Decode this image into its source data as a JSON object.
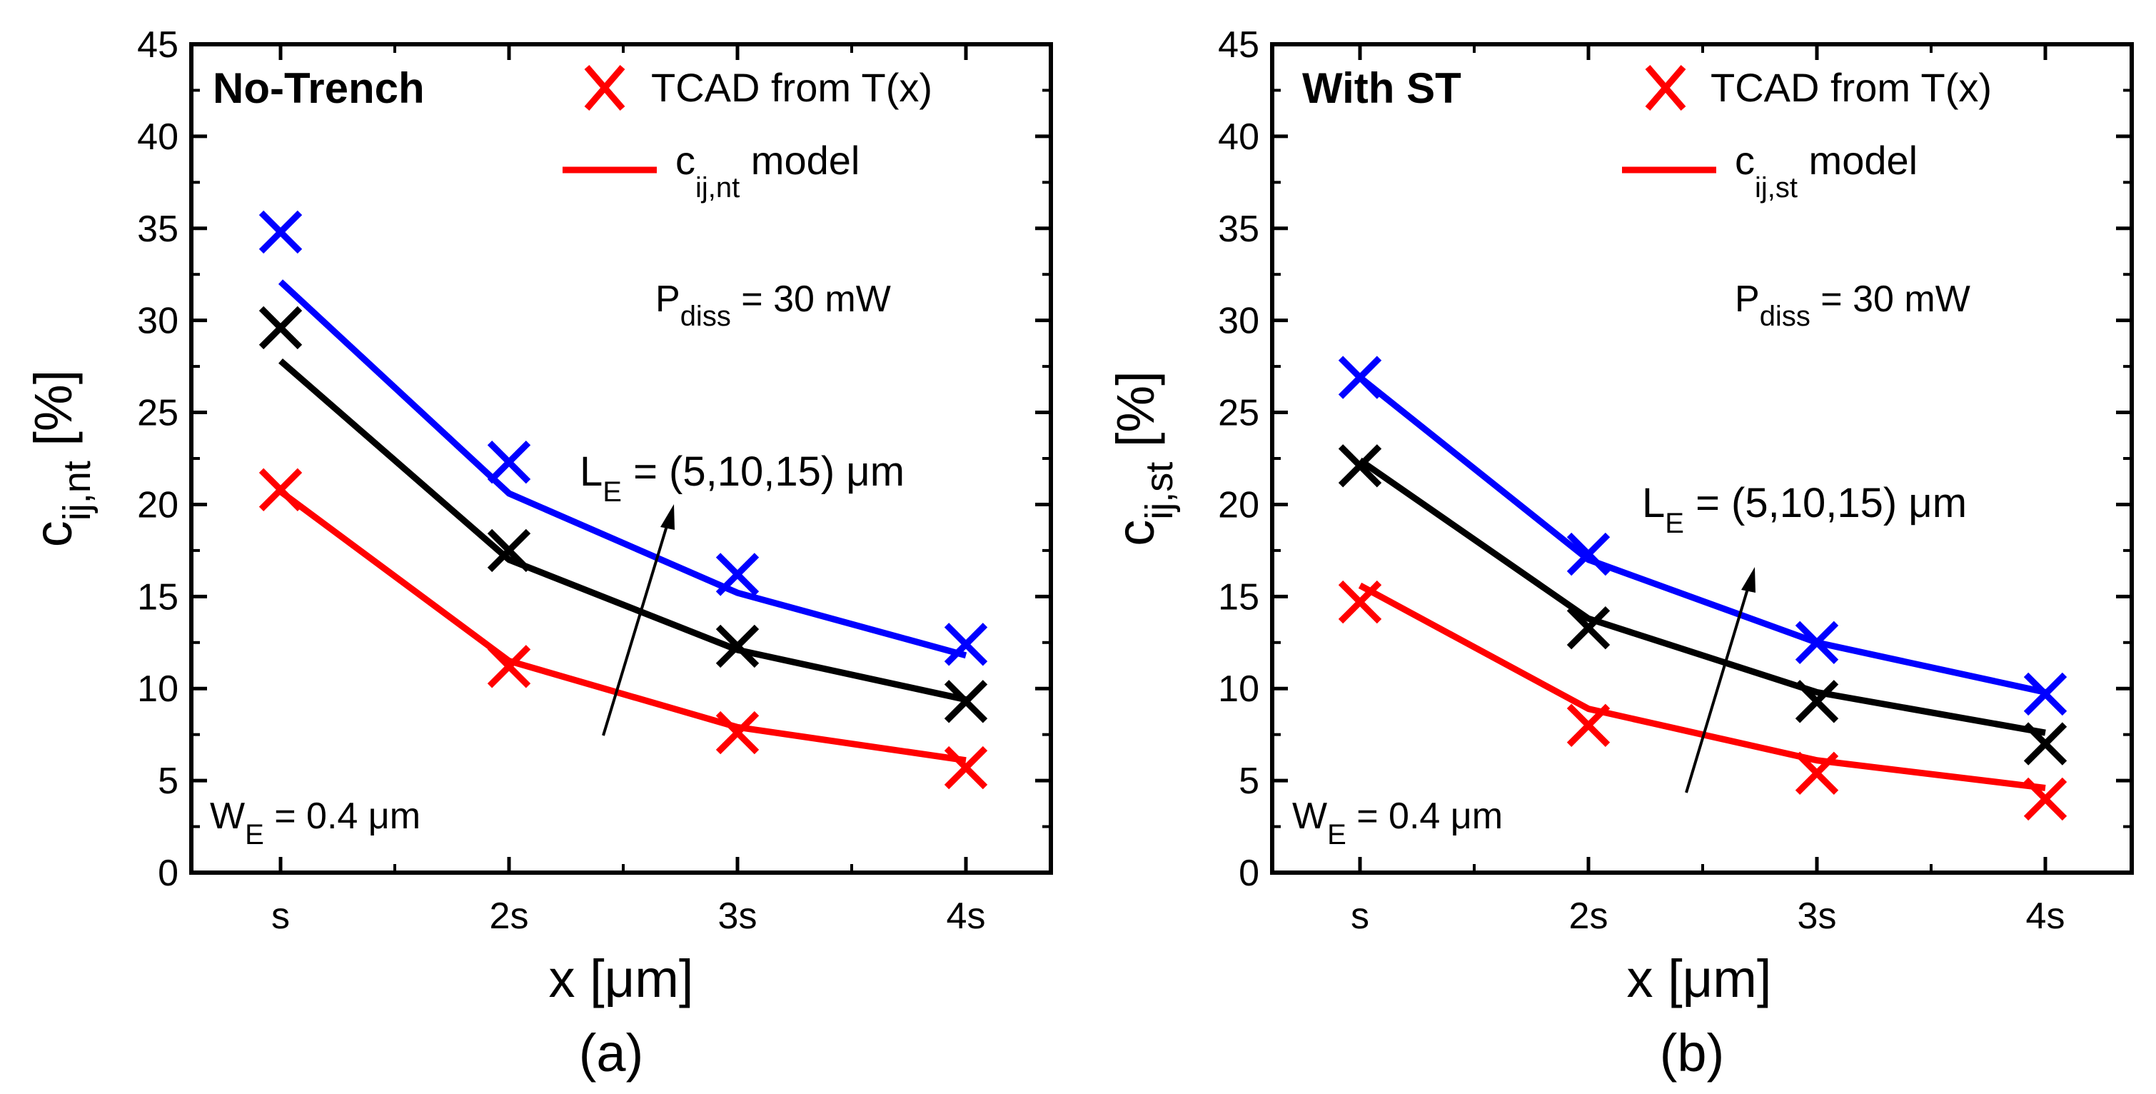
{
  "colors": {
    "red": "#ff0000",
    "black": "#000000",
    "blue": "#0000ff"
  },
  "chart_data": [
    {
      "type": "line",
      "panel": "a",
      "caption": "(a)",
      "title": "No-Trench",
      "ylabel": {
        "main": "c",
        "sub": "ij,nt",
        "rest": " [%]"
      },
      "xlabel": "x [μm]",
      "categories": [
        "s",
        "2s",
        "3s",
        "4s"
      ],
      "ylim": [
        0,
        45
      ],
      "yticks": [
        0,
        5,
        10,
        15,
        20,
        25,
        30,
        35,
        40,
        45
      ],
      "legend": {
        "marker_label": "TCAD from T(x)",
        "line_label": {
          "main": "c",
          "sub": "ij,nt",
          "rest": " model"
        }
      },
      "annotations": {
        "power": {
          "main": "P",
          "sub": "diss",
          "rest": " = 30 mW"
        },
        "length": {
          "main": "L",
          "sub": "E",
          "rest": " = (5,10,15) μm"
        },
        "width": {
          "main": "W",
          "sub": "E",
          "rest": " = 0.4 μm"
        }
      },
      "series": [
        {
          "name": "L_E = 5 μm",
          "color": "#ff0000",
          "tcad": [
            20.8,
            11.2,
            7.6,
            5.7
          ],
          "model": [
            20.7,
            11.5,
            7.9,
            6.1
          ]
        },
        {
          "name": "L_E = 10 μm",
          "color": "#000000",
          "tcad": [
            29.6,
            17.5,
            12.3,
            9.3
          ],
          "model": [
            27.8,
            17.0,
            12.1,
            9.4
          ]
        },
        {
          "name": "L_E = 15 μm",
          "color": "#0000ff",
          "tcad": [
            34.8,
            22.3,
            16.2,
            12.4
          ],
          "model": [
            32.1,
            20.6,
            15.2,
            11.8
          ]
        }
      ]
    },
    {
      "type": "line",
      "panel": "b",
      "caption": "(b)",
      "title": "With ST",
      "ylabel": {
        "main": "c",
        "sub": "ij,st",
        "rest": " [%]"
      },
      "xlabel": "x [μm]",
      "categories": [
        "s",
        "2s",
        "3s",
        "4s"
      ],
      "ylim": [
        0,
        45
      ],
      "yticks": [
        0,
        5,
        10,
        15,
        20,
        25,
        30,
        35,
        40,
        45
      ],
      "legend": {
        "marker_label": "TCAD from T(x)",
        "line_label": {
          "main": "c",
          "sub": "ij,st",
          "rest": " model"
        }
      },
      "annotations": {
        "power": {
          "main": "P",
          "sub": "diss",
          "rest": " = 30 mW"
        },
        "length": {
          "main": "L",
          "sub": "E",
          "rest": " = (5,10,15) μm"
        },
        "width": {
          "main": "W",
          "sub": "E",
          "rest": " = 0.4 μm"
        }
      },
      "series": [
        {
          "name": "L_E = 5 μm",
          "color": "#ff0000",
          "tcad": [
            14.7,
            8.0,
            5.4,
            4.0
          ],
          "model": [
            15.6,
            8.9,
            6.1,
            4.6
          ]
        },
        {
          "name": "L_E = 10 μm",
          "color": "#000000",
          "tcad": [
            22.1,
            13.3,
            9.3,
            7.0
          ],
          "model": [
            22.4,
            13.8,
            9.8,
            7.6
          ]
        },
        {
          "name": "L_E = 15 μm",
          "color": "#0000ff",
          "tcad": [
            26.9,
            17.3,
            12.5,
            9.7
          ],
          "model": [
            26.9,
            17.0,
            12.5,
            9.8
          ]
        }
      ]
    }
  ]
}
